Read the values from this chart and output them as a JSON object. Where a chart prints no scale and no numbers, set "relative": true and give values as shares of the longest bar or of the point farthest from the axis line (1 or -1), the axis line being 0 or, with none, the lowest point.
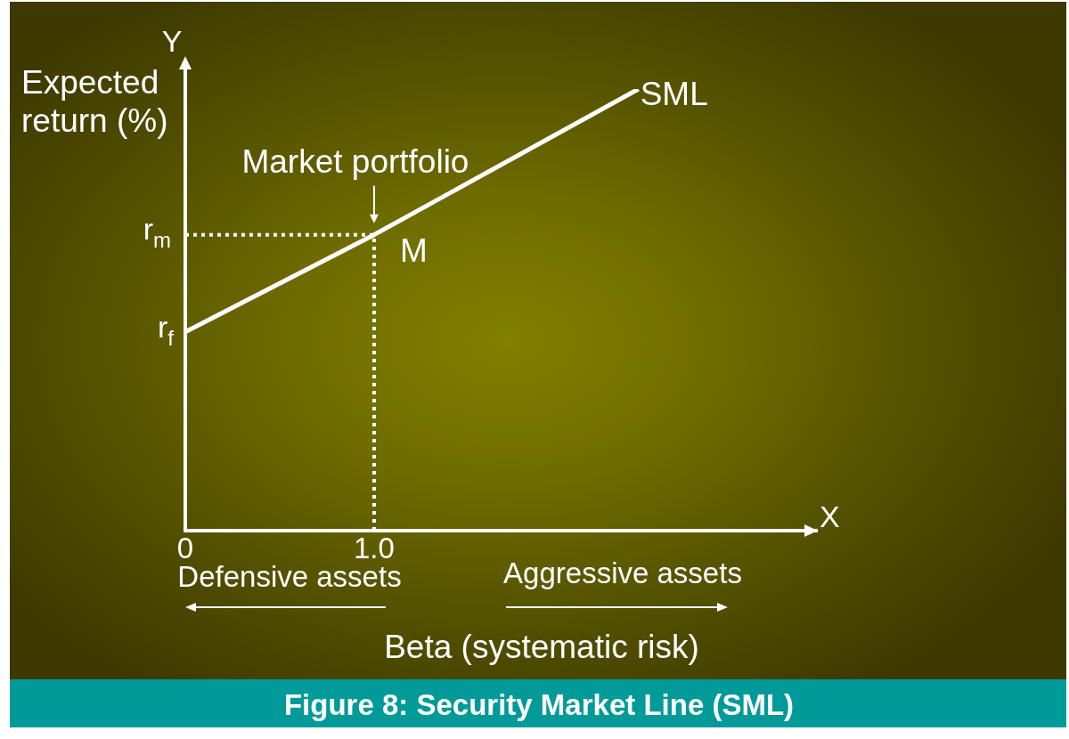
{
  "chart_data": {
    "type": "line",
    "title": "Figure 8: Security Market Line (SML)",
    "xlabel": "Beta (systematic risk)",
    "ylabel": "Expected return (%)",
    "relative": true,
    "xlim": [
      0,
      3.35
    ],
    "xticks": [
      0,
      {
        "value": 1,
        "label": "1.0"
      }
    ],
    "series": [
      {
        "name": "SML",
        "color": "#ffffff",
        "x": [
          0,
          1,
          2.4
        ],
        "values": [
          0.45,
          0.67,
          1
        ]
      },
      {
        "color": "#ffffff",
        "x": [
          0,
          1
        ],
        "values": [
          0.67,
          0.67
        ],
        "line_style": "dotted"
      },
      {
        "color": "#ffffff",
        "x": [
          1,
          1
        ],
        "values": [
          0,
          0.67
        ],
        "line_style": "dotted"
      }
    ],
    "line_style": "solid",
    "annotations": [
      "Y",
      "X",
      "r$_{f}$",
      "r$_{m}$",
      {
        "text": "Market portfolio",
        "x": 1,
        "y": 0.67
      },
      {
        "text": "M",
        "x": 1,
        "y": 0.67
      },
      "Defensive assets",
      "Aggressive assets"
    ]
  }
}
